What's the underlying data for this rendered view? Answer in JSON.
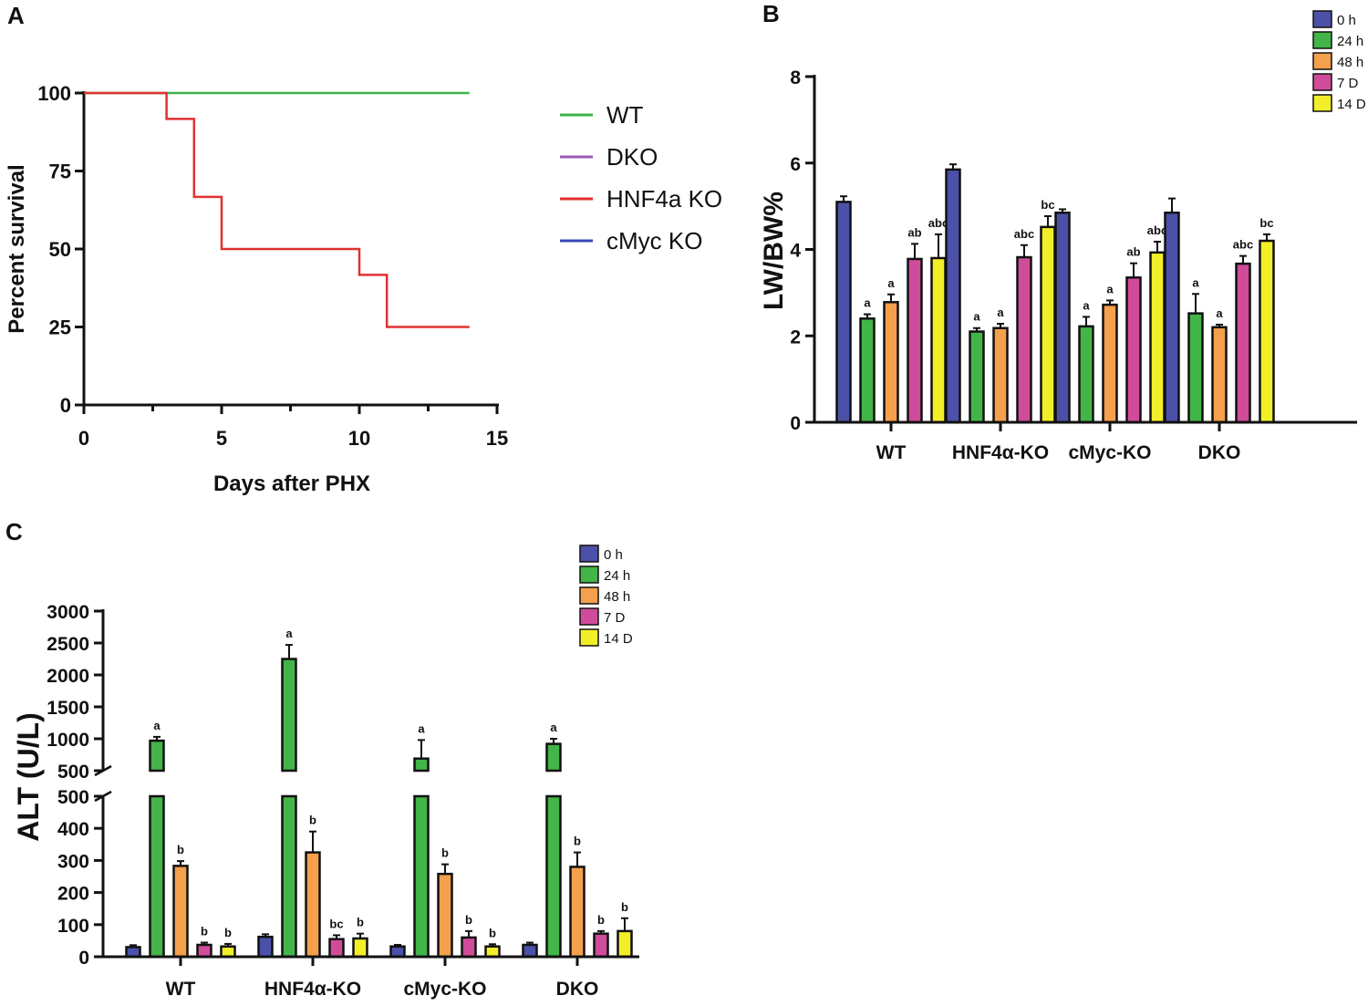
{
  "panels": {
    "A": "A",
    "B": "B",
    "C": "C"
  },
  "chart_data": [
    {
      "id": "A",
      "type": "line",
      "title": "",
      "xlabel": "Days after PHX",
      "ylabel": "Percent survival",
      "xlim": [
        0,
        15
      ],
      "ylim": [
        0,
        100
      ],
      "xticks": [
        0,
        5,
        10,
        15
      ],
      "yticks": [
        0,
        25,
        50,
        75,
        100
      ],
      "step": true,
      "legend_position": "right",
      "series": [
        {
          "name": "WT",
          "color": "#3cb44b",
          "x": [
            0,
            14
          ],
          "y": [
            100,
            100
          ]
        },
        {
          "name": "DKO",
          "color": "#9b59b6",
          "x": [],
          "y": []
        },
        {
          "name": "HNF4a KO",
          "color": "#e03030",
          "x": [
            0,
            3,
            3,
            4,
            4,
            5,
            5,
            10,
            10,
            11,
            11,
            14
          ],
          "y": [
            100,
            100,
            91.7,
            91.7,
            66.7,
            66.7,
            50,
            50,
            41.7,
            41.7,
            25,
            25
          ]
        },
        {
          "name": "cMyc KO",
          "color": "#3a48b8",
          "x": [],
          "y": []
        }
      ]
    },
    {
      "id": "B",
      "type": "bar",
      "title": "",
      "xlabel": "",
      "ylabel": "LW/BW%",
      "ylim": [
        0,
        8
      ],
      "yticks": [
        0,
        2,
        4,
        6,
        8
      ],
      "legend_position": "top-right",
      "categories": [
        "WT",
        "HNF4α-KO",
        "cMyc-KO",
        "DKO"
      ],
      "series": [
        {
          "name": "0 h",
          "color": "#4b51a8",
          "values": [
            5.1,
            5.85,
            4.85,
            4.85
          ],
          "errors": [
            0.13,
            0.12,
            0.08,
            0.33
          ],
          "labels": [
            "",
            "",
            "",
            ""
          ]
        },
        {
          "name": "24 h",
          "color": "#43b548",
          "values": [
            2.4,
            2.1,
            2.22,
            2.52
          ],
          "errors": [
            0.1,
            0.08,
            0.22,
            0.45
          ],
          "labels": [
            "a",
            "a",
            "a",
            "a"
          ]
        },
        {
          "name": "48 h",
          "color": "#f4a04c",
          "values": [
            2.78,
            2.18,
            2.72,
            2.2
          ],
          "errors": [
            0.18,
            0.1,
            0.1,
            0.06
          ],
          "labels": [
            "a",
            "a",
            "a",
            "a"
          ]
        },
        {
          "name": "7 D",
          "color": "#d04c9a",
          "values": [
            3.78,
            3.82,
            3.35,
            3.67
          ],
          "errors": [
            0.35,
            0.28,
            0.33,
            0.18
          ],
          "labels": [
            "ab",
            "abc",
            "ab",
            "abc"
          ]
        },
        {
          "name": "14 D",
          "color": "#f2ef29",
          "values": [
            3.8,
            4.52,
            3.93,
            4.2
          ],
          "errors": [
            0.55,
            0.25,
            0.25,
            0.15
          ],
          "labels": [
            "abc",
            "bc",
            "abc",
            "bc"
          ]
        }
      ]
    },
    {
      "id": "C",
      "type": "bar",
      "title": "",
      "xlabel": "",
      "ylabel": "ALT (U/L)",
      "y_axis_break": [
        500,
        500
      ],
      "ylim": [
        0,
        3000
      ],
      "yticks_lower": [
        0,
        100,
        200,
        300,
        400,
        500
      ],
      "yticks_upper": [
        500,
        1000,
        1500,
        2000,
        2500,
        3000
      ],
      "legend_position": "top-center",
      "categories": [
        "WT",
        "HNF4α-KO",
        "cMyc-KO",
        "DKO"
      ],
      "series": [
        {
          "name": "0 h",
          "color": "#4b51a8",
          "values": [
            30,
            62,
            32,
            37
          ],
          "errors": [
            6,
            8,
            5,
            7
          ],
          "labels": [
            "",
            "",
            "",
            ""
          ]
        },
        {
          "name": "24 h",
          "color": "#43b548",
          "values": [
            970,
            2250,
            690,
            920
          ],
          "errors": [
            60,
            220,
            290,
            80
          ],
          "labels": [
            "a",
            "a",
            "a",
            "a"
          ]
        },
        {
          "name": "48 h",
          "color": "#f4a04c",
          "values": [
            283,
            325,
            258,
            280
          ],
          "errors": [
            15,
            65,
            30,
            45
          ],
          "labels": [
            "b",
            "b",
            "b",
            "b"
          ]
        },
        {
          "name": "7 D",
          "color": "#d04c9a",
          "values": [
            37,
            55,
            60,
            72
          ],
          "errors": [
            7,
            12,
            20,
            8
          ],
          "labels": [
            "b",
            "bc",
            "b",
            "b"
          ]
        },
        {
          "name": "14 D",
          "color": "#f2ef29",
          "values": [
            32,
            57,
            32,
            80
          ],
          "errors": [
            8,
            15,
            7,
            40
          ],
          "labels": [
            "b",
            "b",
            "b",
            "b"
          ]
        }
      ]
    }
  ]
}
